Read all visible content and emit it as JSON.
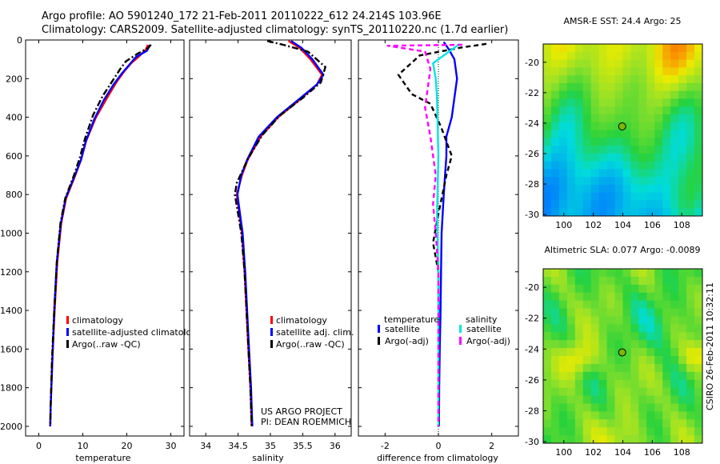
{
  "header": {
    "line1": "Argo profile: AO 5901240_172 21-Feb-2011 20110222_612 24.214S 103.96E",
    "line2": "Climatology: CARS2009. Satellite-adjusted climatology: synTS_20110220.nc (1.7d earlier)"
  },
  "credits": {
    "project": "US ARGO PROJECT",
    "pi": "PI: DEAN ROEMMICH",
    "stamp": "CSIRO 26-Feb-2011 10:32:11"
  },
  "colors": {
    "climatology": "#ff0000",
    "satellite": "#0000ff",
    "argo": "#000000",
    "sal_satellite": "#00e5e5",
    "sal_argo": "#ff00ff"
  },
  "chart_data": [
    {
      "id": "temperature",
      "type": "line",
      "xlabel": "temperature",
      "xlim": [
        -3,
        33
      ],
      "ylim": [
        2050,
        0
      ],
      "xticks": [
        0,
        10,
        20,
        30
      ],
      "yticks": [
        0,
        200,
        400,
        600,
        800,
        1000,
        1200,
        1400,
        1600,
        1800,
        2000
      ],
      "legend": [
        {
          "key": "climatology",
          "label": "climatology"
        },
        {
          "key": "satellite",
          "label": "satellite-adjusted climatology"
        },
        {
          "key": "argo",
          "label": "Argo(..raw -QC)"
        }
      ],
      "series": [
        {
          "name": "climatology",
          "color_key": "climatology",
          "dash": "",
          "points": [
            [
              24.8,
              25
            ],
            [
              24.3,
              50
            ],
            [
              23,
              80
            ],
            [
              21,
              120
            ],
            [
              19.5,
              160
            ],
            [
              17.6,
              220
            ],
            [
              15.5,
              300
            ],
            [
              13,
              400
            ],
            [
              10.8,
              520
            ],
            [
              9.6,
              620
            ],
            [
              8.3,
              700
            ],
            [
              6.2,
              820
            ],
            [
              5.1,
              950
            ],
            [
              4.2,
              1150
            ],
            [
              3.6,
              1400
            ],
            [
              3.1,
              1650
            ],
            [
              2.7,
              1900
            ],
            [
              2.6,
              2000
            ]
          ]
        },
        {
          "name": "satellite-adjusted climatology",
          "color_key": "satellite",
          "dash": "",
          "points": [
            [
              25.3,
              25
            ],
            [
              24.6,
              55
            ],
            [
              22,
              90
            ],
            [
              20.5,
              130
            ],
            [
              19,
              170
            ],
            [
              17,
              230
            ],
            [
              14.8,
              310
            ],
            [
              12.6,
              410
            ],
            [
              10.6,
              530
            ],
            [
              9.6,
              620
            ],
            [
              8.2,
              700
            ],
            [
              6.1,
              820
            ],
            [
              5,
              950
            ],
            [
              4.1,
              1150
            ],
            [
              3.5,
              1400
            ],
            [
              3.1,
              1650
            ],
            [
              2.7,
              1900
            ],
            [
              2.6,
              2000
            ]
          ]
        },
        {
          "name": "Argo(..raw -QC)",
          "color_key": "argo",
          "dash": "8 3 2 3",
          "points": [
            [
              25.5,
              25
            ],
            [
              24.6,
              45
            ],
            [
              22.5,
              70
            ],
            [
              19.8,
              110
            ],
            [
              18.5,
              150
            ],
            [
              16.8,
              210
            ],
            [
              14.5,
              290
            ],
            [
              12.3,
              390
            ],
            [
              10.5,
              510
            ],
            [
              9.3,
              610
            ],
            [
              8,
              700
            ],
            [
              6,
              820
            ],
            [
              4.9,
              950
            ],
            [
              4.1,
              1150
            ],
            [
              3.5,
              1400
            ],
            [
              3,
              1650
            ],
            [
              2.7,
              1900
            ],
            [
              2.6,
              2000
            ]
          ]
        }
      ]
    },
    {
      "id": "salinity",
      "type": "line",
      "xlabel": "salinity",
      "xlim": [
        33.75,
        36.25
      ],
      "ylim": [
        2050,
        0
      ],
      "xticks": [
        34,
        34.5,
        35,
        35.5,
        36
      ],
      "legend": [
        {
          "key": "climatology",
          "label": "climatology"
        },
        {
          "key": "satellite",
          "label": "satellite adj. clim."
        },
        {
          "key": "argo",
          "label": "Argo(..raw -QC)"
        }
      ],
      "series": [
        {
          "name": "climatology",
          "color_key": "climatology",
          "dash": "",
          "points": [
            [
              35.28,
              5
            ],
            [
              35.45,
              40
            ],
            [
              35.62,
              100
            ],
            [
              35.8,
              180
            ],
            [
              35.72,
              230
            ],
            [
              35.45,
              310
            ],
            [
              35.12,
              400
            ],
            [
              34.85,
              500
            ],
            [
              34.65,
              620
            ],
            [
              34.56,
              700
            ],
            [
              34.48,
              800
            ],
            [
              34.52,
              900
            ],
            [
              34.56,
              1000
            ],
            [
              34.6,
              1200
            ],
            [
              34.63,
              1400
            ],
            [
              34.66,
              1600
            ],
            [
              34.69,
              1800
            ],
            [
              34.71,
              2000
            ]
          ]
        },
        {
          "name": "satellite adj. clim.",
          "color_key": "satellite",
          "dash": "",
          "points": [
            [
              35.32,
              5
            ],
            [
              35.48,
              40
            ],
            [
              35.65,
              100
            ],
            [
              35.82,
              180
            ],
            [
              35.72,
              230
            ],
            [
              35.43,
              310
            ],
            [
              35.1,
              400
            ],
            [
              34.82,
              500
            ],
            [
              34.64,
              620
            ],
            [
              34.55,
              700
            ],
            [
              34.49,
              800
            ],
            [
              34.53,
              900
            ],
            [
              34.57,
              1000
            ],
            [
              34.61,
              1200
            ],
            [
              34.64,
              1400
            ],
            [
              34.67,
              1600
            ],
            [
              34.7,
              1800
            ],
            [
              34.72,
              2000
            ]
          ]
        },
        {
          "name": "Argo(..raw -QC)",
          "color_key": "argo",
          "dash": "8 3 2 3",
          "points": [
            [
              34.95,
              5
            ],
            [
              35.2,
              25
            ],
            [
              35.58,
              60
            ],
            [
              35.85,
              140
            ],
            [
              35.78,
              220
            ],
            [
              35.5,
              300
            ],
            [
              35.15,
              390
            ],
            [
              34.88,
              490
            ],
            [
              34.66,
              610
            ],
            [
              34.48,
              740
            ],
            [
              34.45,
              800
            ],
            [
              34.5,
              900
            ],
            [
              34.55,
              1000
            ],
            [
              34.6,
              1200
            ],
            [
              34.63,
              1400
            ],
            [
              34.66,
              1600
            ],
            [
              34.69,
              1800
            ],
            [
              34.71,
              2000
            ]
          ]
        }
      ]
    },
    {
      "id": "difference",
      "type": "line",
      "xlabel": "difference from climatology",
      "xlim": [
        -3,
        3
      ],
      "ylim": [
        2050,
        0
      ],
      "xticks": [
        -2,
        0,
        2
      ],
      "legend_groups": [
        {
          "title": "temperature",
          "items": [
            {
              "key": "satellite",
              "label": "satellite"
            },
            {
              "key": "argo",
              "label": "Argo(-adj)"
            }
          ]
        },
        {
          "title": "salinity",
          "items": [
            {
              "key": "sal_satellite",
              "label": "satellite"
            },
            {
              "key": "sal_argo",
              "label": "Argo(-adj)"
            }
          ]
        }
      ],
      "series": [
        {
          "name": "temperature satellite",
          "color_key": "satellite",
          "dash": "",
          "points": [
            [
              0.2,
              10
            ],
            [
              0.4,
              50
            ],
            [
              0.6,
              100
            ],
            [
              0.7,
              200
            ],
            [
              0.6,
              300
            ],
            [
              0.5,
              400
            ],
            [
              0.3,
              500
            ],
            [
              0.3,
              600
            ],
            [
              0.25,
              700
            ],
            [
              0.2,
              800
            ],
            [
              0.12,
              1000
            ],
            [
              0.1,
              1200
            ],
            [
              0.08,
              1400
            ],
            [
              0.05,
              1600
            ],
            [
              0.03,
              1800
            ],
            [
              0.02,
              2000
            ]
          ]
        },
        {
          "name": "temperature Argo(-adj)",
          "color_key": "argo",
          "dash": "6 4",
          "points": [
            [
              1.8,
              20
            ],
            [
              0.8,
              40
            ],
            [
              -0.7,
              80
            ],
            [
              -1.5,
              180
            ],
            [
              -1,
              280
            ],
            [
              -0.3,
              330
            ],
            [
              0.1,
              450
            ],
            [
              0.5,
              600
            ],
            [
              0.3,
              700
            ],
            [
              0,
              900
            ],
            [
              -0.2,
              1050
            ],
            [
              0,
              1200
            ],
            [
              0.02,
              2000
            ]
          ]
        },
        {
          "name": "salinity satellite",
          "color_key": "sal_satellite",
          "dash": "",
          "points": [
            [
              0.8,
              20
            ],
            [
              -0.2,
              120
            ],
            [
              -0.1,
              200
            ],
            [
              -0.05,
              300
            ],
            [
              0,
              600
            ],
            [
              -0.05,
              900
            ],
            [
              0,
              1200
            ],
            [
              0,
              2000
            ]
          ]
        },
        {
          "name": "salinity Argo(-adj)",
          "color_key": "sal_argo",
          "dash": "6 4",
          "points": [
            [
              0.9,
              25
            ],
            [
              -1.9,
              30
            ],
            [
              -0.5,
              60
            ],
            [
              -0.3,
              150
            ],
            [
              -0.5,
              350
            ],
            [
              -0.3,
              500
            ],
            [
              -0.1,
              700
            ],
            [
              -0.2,
              850
            ],
            [
              -0.1,
              1000
            ],
            [
              0,
              1200
            ],
            [
              0,
              2000
            ]
          ]
        }
      ]
    },
    {
      "id": "sst_map",
      "type": "heatmap",
      "title": "AMSR-E SST: 24.4  Argo: 25",
      "xlim": [
        98.6,
        109.4
      ],
      "ylim": [
        -30.1,
        -18.8
      ],
      "xticks": [
        100,
        102,
        104,
        106,
        108
      ],
      "yticks": [
        -20,
        -22,
        -24,
        -26,
        -28,
        -30
      ],
      "marker": {
        "lon": 103.96,
        "lat": -24.214
      }
    },
    {
      "id": "sla_map",
      "type": "heatmap",
      "title": "Altimetric SLA: 0.077  Argo: -0.0089",
      "xlim": [
        98.6,
        109.4
      ],
      "ylim": [
        -30.1,
        -18.8
      ],
      "xticks": [
        100,
        102,
        104,
        106,
        108
      ],
      "yticks": [
        -20,
        -22,
        -24,
        -26,
        -28,
        -30
      ],
      "marker": {
        "lon": 103.96,
        "lat": -24.214
      }
    }
  ]
}
